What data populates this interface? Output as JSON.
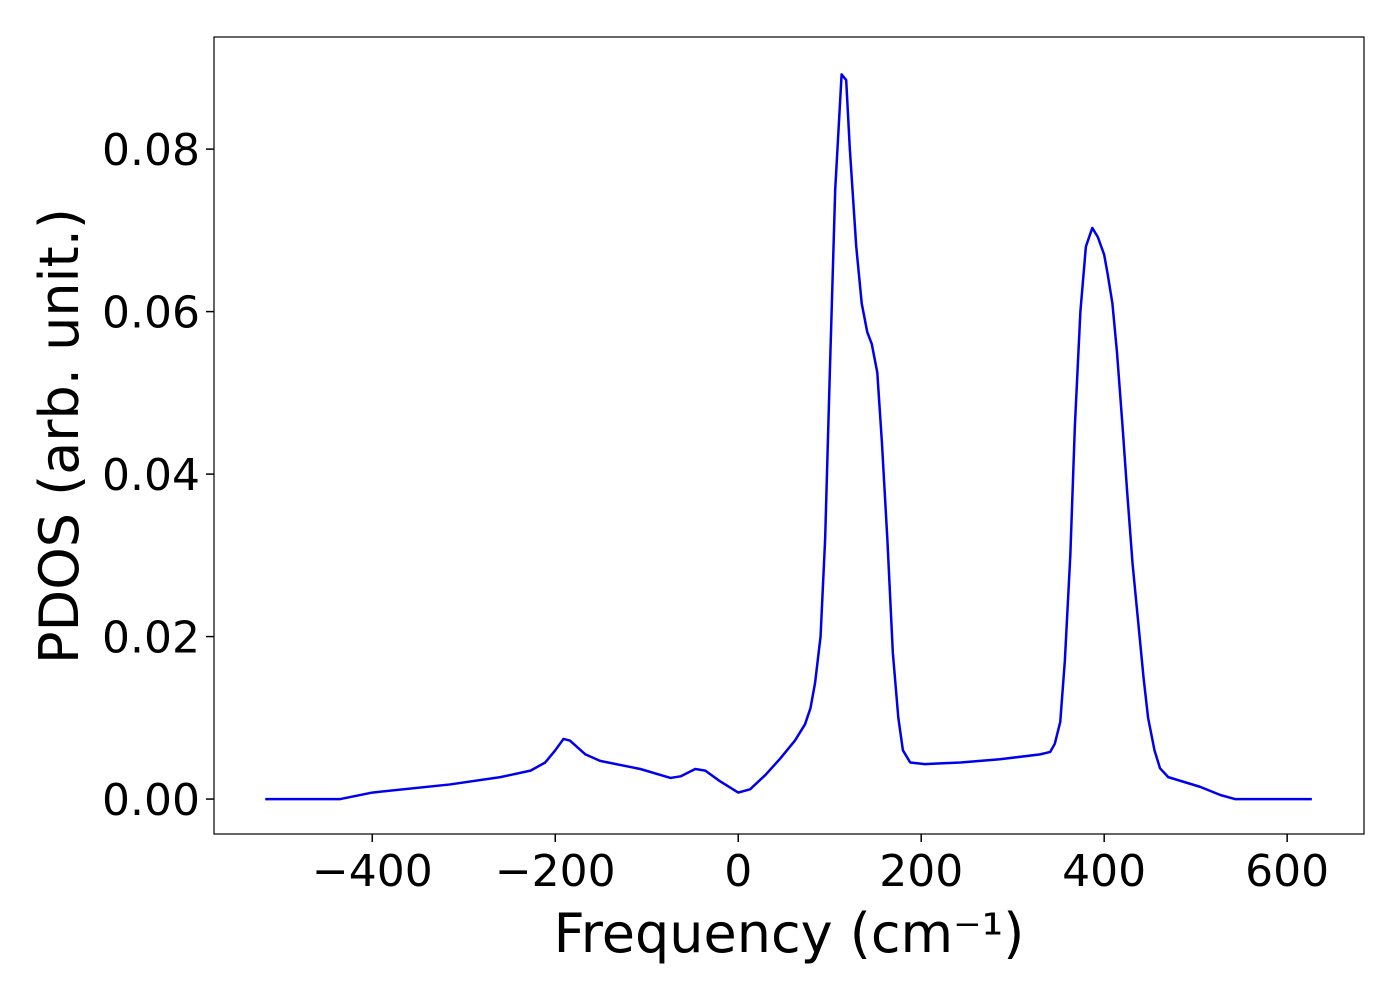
{
  "chart_data": {
    "type": "line",
    "xlabel": "Frequency (cm⁻¹)",
    "ylabel": "PDOS (arb. unit.)",
    "xlim": [
      -573,
      684
    ],
    "ylim": [
      -0.0043,
      0.0938
    ],
    "xticks": [
      {
        "value": -400,
        "label": "−400"
      },
      {
        "value": -200,
        "label": "−200"
      },
      0,
      200,
      400,
      600
    ],
    "yticks": [
      {
        "value": 0,
        "label": "0.00"
      },
      0.02,
      0.04,
      0.06,
      0.08
    ],
    "grid": false,
    "series": [
      {
        "color": "#0000ee",
        "x": [
          -517,
          -435,
          -400,
          -315,
          -260,
          -227,
          -211,
          -200,
          -191,
          -184,
          -167,
          -151,
          -107,
          -74,
          -63,
          -47,
          -36,
          -20,
          0,
          13,
          30,
          46,
          62,
          73,
          79,
          84,
          90,
          95,
          100,
          106,
          113,
          118,
          122,
          129,
          135,
          141,
          146,
          152,
          157,
          163,
          169,
          175,
          180,
          188,
          204,
          221,
          243,
          286,
          330,
          341,
          346,
          352,
          357,
          363,
          368,
          374,
          380,
          387,
          393,
          400,
          404,
          409,
          414,
          420,
          425,
          431,
          437,
          443,
          448,
          455,
          461,
          470,
          505,
          527,
          543,
          627
        ],
        "values": [
          0,
          0,
          0.0008,
          0.0018,
          0.0027,
          0.0035,
          0.0045,
          0.006,
          0.0074,
          0.0072,
          0.0055,
          0.0047,
          0.0037,
          0.0026,
          0.0028,
          0.0037,
          0.0035,
          0.0022,
          0.0008,
          0.0012,
          0.003,
          0.005,
          0.0072,
          0.0092,
          0.0112,
          0.0143,
          0.02,
          0.032,
          0.052,
          0.075,
          0.0892,
          0.0885,
          0.08,
          0.068,
          0.061,
          0.0575,
          0.056,
          0.0525,
          0.044,
          0.032,
          0.018,
          0.01,
          0.006,
          0.0045,
          0.0043,
          0.0044,
          0.0045,
          0.0049,
          0.0055,
          0.0058,
          0.0068,
          0.0095,
          0.017,
          0.03,
          0.046,
          0.06,
          0.068,
          0.0703,
          0.0692,
          0.067,
          0.0645,
          0.061,
          0.055,
          0.046,
          0.038,
          0.029,
          0.022,
          0.015,
          0.01,
          0.006,
          0.0038,
          0.0027,
          0.0015,
          0.0005,
          0,
          0
        ]
      }
    ]
  }
}
